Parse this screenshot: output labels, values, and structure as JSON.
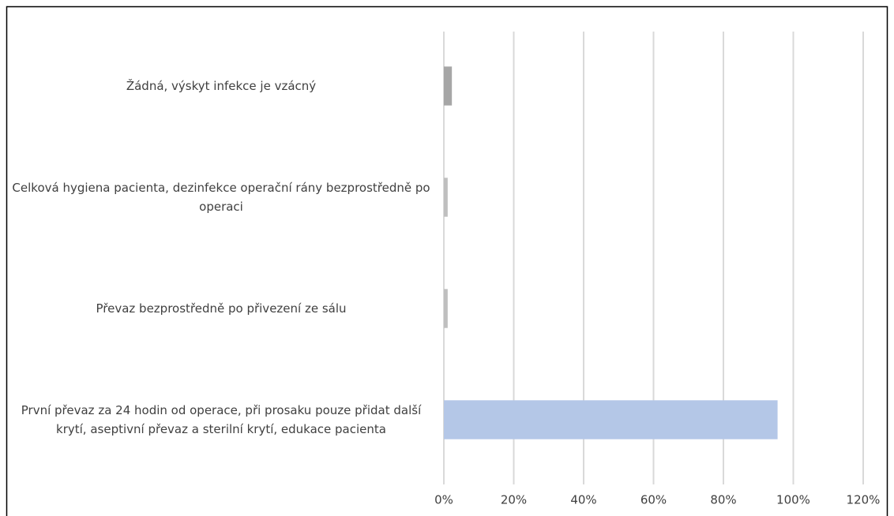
{
  "chart_data": {
    "type": "hbar",
    "categories": [
      "Žádná, výskyt infekce je vzácný",
      "Celková hygiena pacienta, dezinfekce operační rány bezprostředně po operaci",
      "Převaz bezprostředně po přivezení ze sálu",
      "První převaz za 24 hodin od operace, při prosaku pouze přidat další krytí, aseptivní převaz a sterilní krytí, edukace pacienta"
    ],
    "values": [
      2.3,
      1.1,
      1.1,
      95.5
    ],
    "colors": [
      "#a6a6a6",
      "#bfbfbf",
      "#bfbfbf",
      "#b4c7e7"
    ],
    "xlim": [
      0,
      120
    ],
    "xticks": [
      {
        "value": 0,
        "label": "0%"
      },
      {
        "value": 20,
        "label": "20%"
      },
      {
        "value": 40,
        "label": "40%"
      },
      {
        "value": 60,
        "label": "60%"
      },
      {
        "value": 80,
        "label": "80%"
      },
      {
        "value": 100,
        "label": "100%"
      },
      {
        "value": 120,
        "label": "120%"
      }
    ],
    "grid": true
  }
}
